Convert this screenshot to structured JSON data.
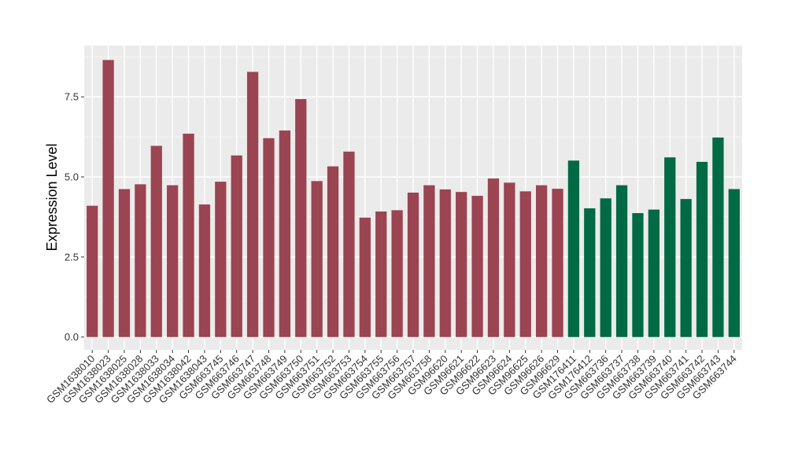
{
  "chart_data": {
    "type": "bar",
    "ylabel": "Expression Level",
    "xlabel": "",
    "ylim": [
      -0.4,
      9.1
    ],
    "yticks": [
      0.0,
      2.5,
      5.0,
      7.5
    ],
    "ytick_labels": [
      "0.0",
      "2.5",
      "5.0",
      "7.5"
    ],
    "grid": true,
    "panel_background": "#ebebeb",
    "categories": [
      "GSM1638010",
      "GSM1638023",
      "GSM1638025",
      "GSM1638028",
      "GSM1638033",
      "GSM1638034",
      "GSM1638042",
      "GSM1638043",
      "GSM663745",
      "GSM663746",
      "GSM663747",
      "GSM663748",
      "GSM663749",
      "GSM663750",
      "GSM663751",
      "GSM663752",
      "GSM663753",
      "GSM663754",
      "GSM663755",
      "GSM663756",
      "GSM663757",
      "GSM663758",
      "GSM96620",
      "GSM96621",
      "GSM96622",
      "GSM96623",
      "GSM96624",
      "GSM96625",
      "GSM96626",
      "GSM96629",
      "GSM176411",
      "GSM176412",
      "GSM663736",
      "GSM663737",
      "GSM663738",
      "GSM663739",
      "GSM663740",
      "GSM663741",
      "GSM663742",
      "GSM663743",
      "GSM663744"
    ],
    "values": [
      4.1,
      8.65,
      4.62,
      4.77,
      5.97,
      4.74,
      6.35,
      4.14,
      4.85,
      5.67,
      8.28,
      6.21,
      6.45,
      7.43,
      4.87,
      5.33,
      5.79,
      3.73,
      3.92,
      3.96,
      4.51,
      4.74,
      4.61,
      4.53,
      4.41,
      4.95,
      4.82,
      4.55,
      4.74,
      4.63,
      5.51,
      4.02,
      4.33,
      4.74,
      3.87,
      3.98,
      5.61,
      4.31,
      5.47,
      6.23,
      4.62
    ],
    "bar_colors": [
      "#9b4452",
      "#9b4452",
      "#9b4452",
      "#9b4452",
      "#9b4452",
      "#9b4452",
      "#9b4452",
      "#9b4452",
      "#9b4452",
      "#9b4452",
      "#9b4452",
      "#9b4452",
      "#9b4452",
      "#9b4452",
      "#9b4452",
      "#9b4452",
      "#9b4452",
      "#9b4452",
      "#9b4452",
      "#9b4452",
      "#9b4452",
      "#9b4452",
      "#9b4452",
      "#9b4452",
      "#9b4452",
      "#9b4452",
      "#9b4452",
      "#9b4452",
      "#9b4452",
      "#9b4452",
      "#006a44",
      "#006a44",
      "#006a44",
      "#006a44",
      "#006a44",
      "#006a44",
      "#006a44",
      "#006a44",
      "#006a44",
      "#006a44",
      "#006a44"
    ]
  }
}
